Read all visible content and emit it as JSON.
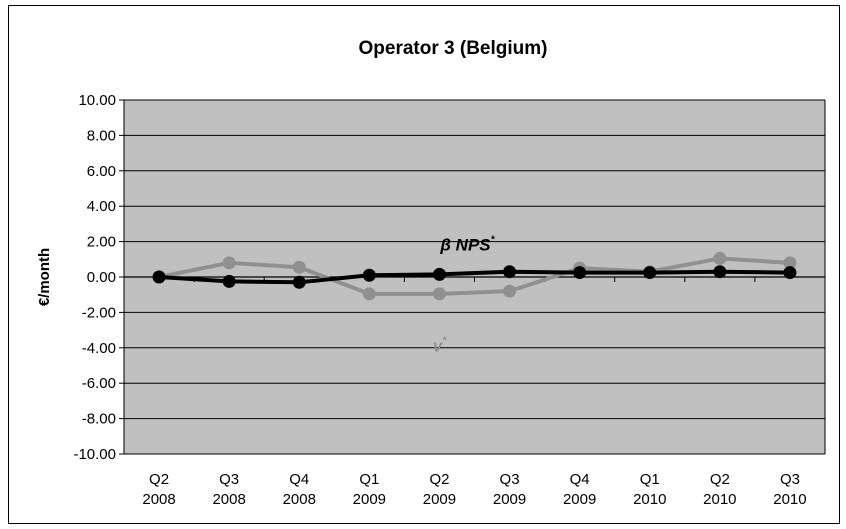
{
  "chart_data": {
    "type": "line",
    "title": "Operator 3 (Belgium)",
    "xlabel": "",
    "ylabel": "€/month",
    "ylim": [
      -10,
      10
    ],
    "ytick_step": 2,
    "y_tick_labels": [
      "10.00",
      "8.00",
      "6.00",
      "4.00",
      "2.00",
      "0.00",
      "-2.00",
      "-4.00",
      "-6.00",
      "-8.00",
      "-10.00"
    ],
    "categories": [
      [
        "Q2",
        "2008"
      ],
      [
        "Q3",
        "2008"
      ],
      [
        "Q4",
        "2008"
      ],
      [
        "Q1",
        "2009"
      ],
      [
        "Q2",
        "2009"
      ],
      [
        "Q3",
        "2009"
      ],
      [
        "Q4",
        "2009"
      ],
      [
        "Q1",
        "2010"
      ],
      [
        "Q2",
        "2010"
      ],
      [
        "Q3",
        "2010"
      ]
    ],
    "grid": true,
    "plot_background": "#c0c0c0",
    "series": [
      {
        "color": "#000000",
        "values": [
          0.0,
          -0.25,
          -0.3,
          0.1,
          0.15,
          0.3,
          0.25,
          0.25,
          0.3,
          0.25
        ]
      },
      {
        "color": "#909090",
        "values": [
          0.0,
          0.8,
          0.55,
          -0.95,
          -0.95,
          -0.8,
          0.5,
          0.3,
          1.05,
          0.8
        ]
      }
    ],
    "annotations": [
      {
        "text": "β NPS",
        "sup": "*",
        "color": "#000000",
        "x_index": 4.4,
        "y": 1.5
      },
      {
        "text": "v",
        "sup": "*",
        "color": "#909090",
        "x_index": 4.0,
        "y": -4.2
      }
    ]
  }
}
